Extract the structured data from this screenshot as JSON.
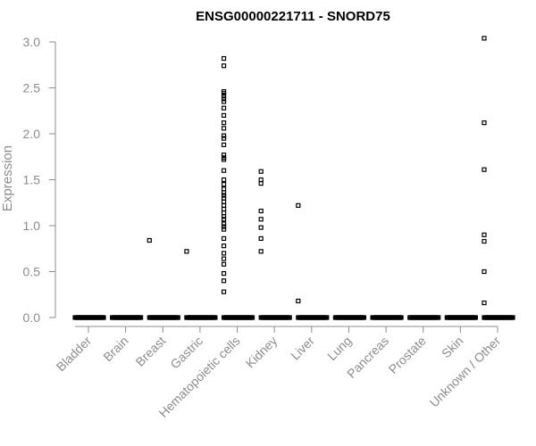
{
  "chart_data": {
    "type": "scatter",
    "title": "ENSG00000221711 - SNORD75",
    "xlabel": "",
    "ylabel": "Expression",
    "ylim": [
      0,
      3.0
    ],
    "yticks": [
      "0.0",
      "0.5",
      "1.0",
      "1.5",
      "2.0",
      "2.5",
      "3.0"
    ],
    "grid": false,
    "categories": [
      "Bladder",
      "Brain",
      "Breast",
      "Gastric",
      "Hematopoietic cells",
      "Kidney",
      "Liver",
      "Lung",
      "Pancreas",
      "Prostate",
      "Skin",
      "Unknown / Other"
    ],
    "points": [
      {
        "category": "Breast",
        "values": [
          0.84
        ]
      },
      {
        "category": "Gastric",
        "values": [
          0.72
        ]
      },
      {
        "category": "Hematopoietic cells",
        "values": [
          2.82,
          2.74,
          2.46,
          2.44,
          2.41,
          2.38,
          2.35,
          2.28,
          2.2,
          2.12,
          2.06,
          1.98,
          1.95,
          1.88,
          1.77,
          1.74,
          1.72,
          1.6,
          1.5,
          1.45,
          1.4,
          1.36,
          1.33,
          1.3,
          1.26,
          1.22,
          1.18,
          1.14,
          1.1,
          1.07,
          1.02,
          0.99,
          0.96,
          0.86,
          0.78,
          0.7,
          0.64,
          0.58,
          0.48,
          0.4,
          0.28
        ]
      },
      {
        "category": "Kidney",
        "values": [
          1.59,
          1.5,
          1.46,
          1.16,
          1.07,
          0.98,
          0.86,
          0.72
        ]
      },
      {
        "category": "Liver",
        "values": [
          1.22,
          0.18
        ]
      },
      {
        "category": "Unknown / Other",
        "values": [
          3.04,
          2.12,
          1.61,
          0.9,
          0.83,
          0.5,
          0.16
        ]
      }
    ],
    "baseline_value": 0
  }
}
